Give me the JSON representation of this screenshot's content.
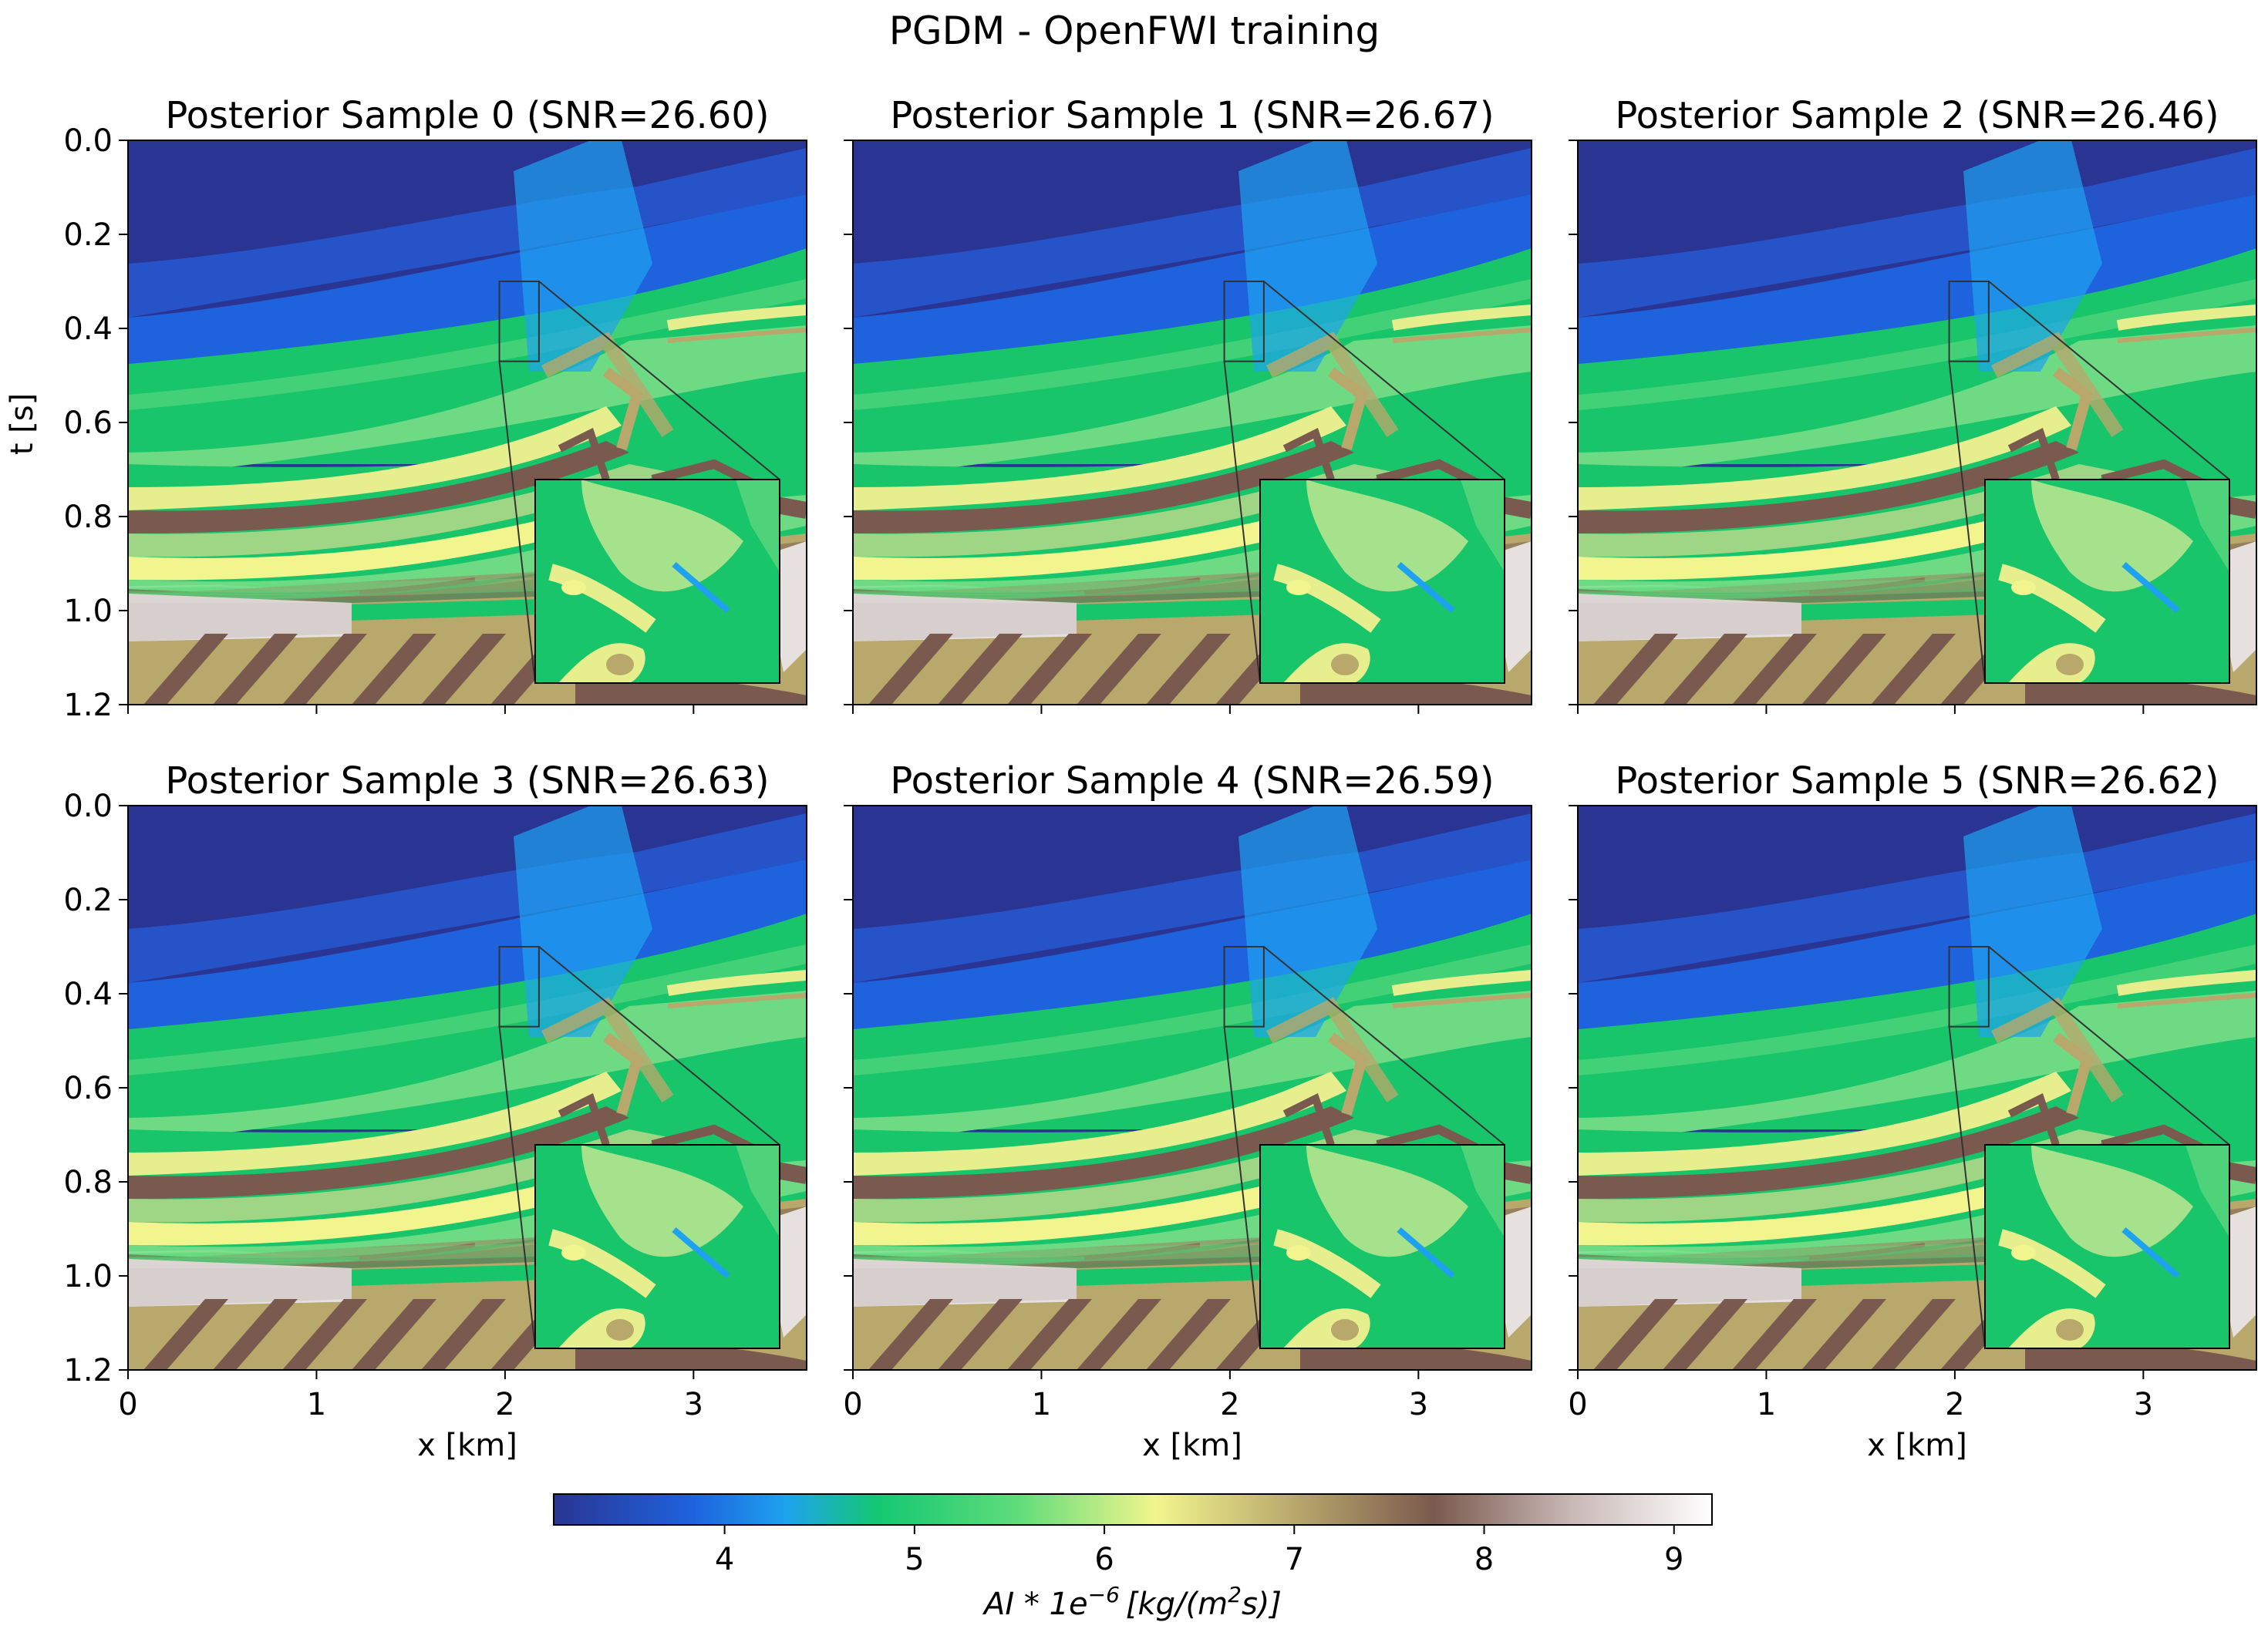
{
  "figure": {
    "suptitle": "PGDM - OpenFWI training"
  },
  "chart_data": {
    "type": "heatmap",
    "xlabel": "x [km]",
    "ylabel": "t [s]",
    "xlim": [
      0,
      3.6
    ],
    "ylim": [
      1.2,
      0.0
    ],
    "x_ticks": [
      "0",
      "1",
      "2",
      "3"
    ],
    "y_ticks": [
      "0.0",
      "0.2",
      "0.4",
      "0.6",
      "0.8",
      "1.0",
      "1.2"
    ],
    "zoom_region": {
      "x_range": [
        1.97,
        2.18
      ],
      "t_range": [
        0.3,
        0.47
      ]
    },
    "panels": [
      {
        "title": "Posterior Sample 0 (SNR=26.60)",
        "snr": 26.6
      },
      {
        "title": "Posterior Sample 1 (SNR=26.67)",
        "snr": 26.67
      },
      {
        "title": "Posterior Sample 2 (SNR=26.46)",
        "snr": 26.46
      },
      {
        "title": "Posterior Sample 3 (SNR=26.63)",
        "snr": 26.63
      },
      {
        "title": "Posterior Sample 4 (SNR=26.59)",
        "snr": 26.59
      },
      {
        "title": "Posterior Sample 5 (SNR=26.62)",
        "snr": 26.62
      }
    ],
    "colorbar": {
      "label": "AI * 1e-6 [kg/(m^2 s)]",
      "label_main": "AI * 1e",
      "label_exp": "−6",
      "label_units": "[kg/(m",
      "label_units_exp": "2",
      "label_units_end": "s)]",
      "range": [
        3.1,
        9.2
      ],
      "ticks": [
        "4",
        "5",
        "6",
        "7",
        "8",
        "9"
      ],
      "colors": [
        "#2a3593",
        "#1e62dd",
        "#1ea2ef",
        "#14c872",
        "#5fdc7a",
        "#f2f58e",
        "#b8a86c",
        "#7a5a4e",
        "#c9b9b7",
        "#ffffff"
      ]
    }
  }
}
